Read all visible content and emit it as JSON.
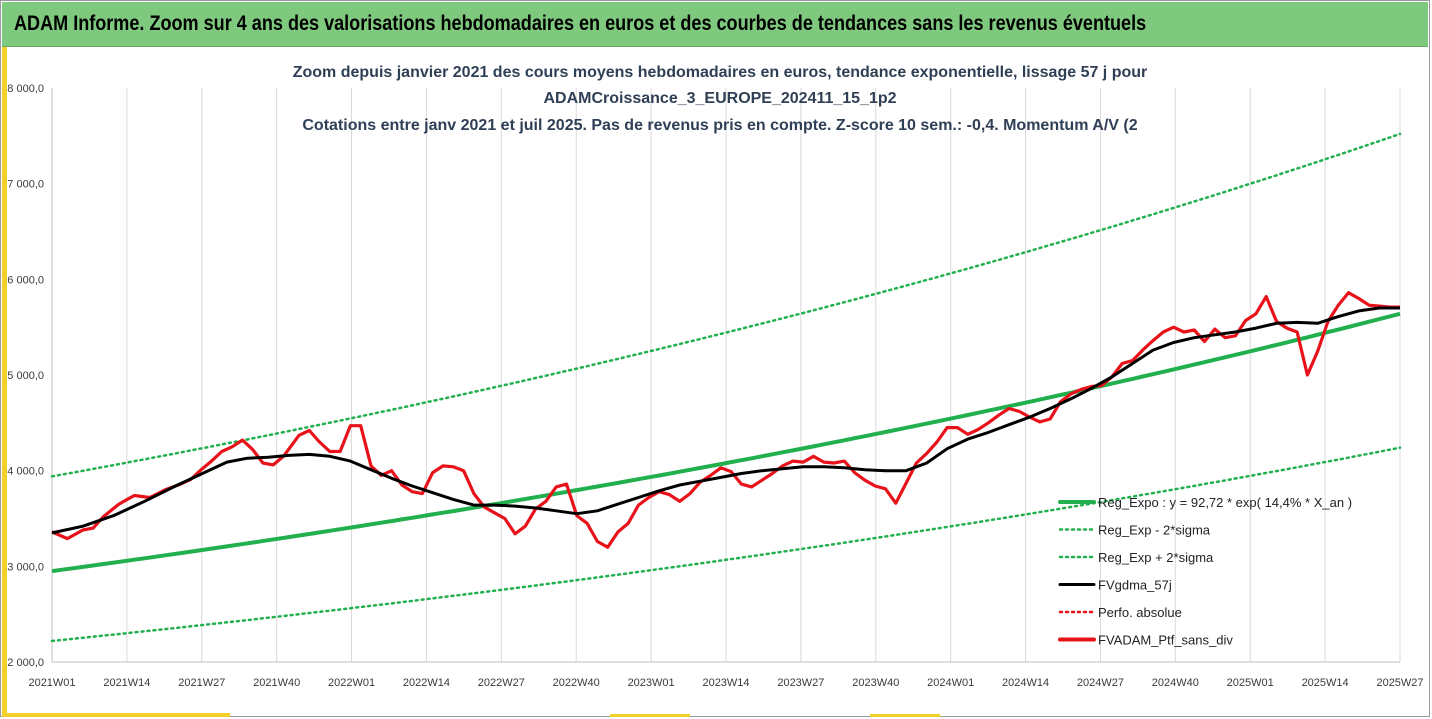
{
  "banner": {
    "title": "ADAM Informe. Zoom sur 4 ans des valorisations hebdomadaires en euros et des courbes de tendances sans les revenus éventuels"
  },
  "colors": {
    "banner_bg": "#7fc97f",
    "accent_yellow": "#f3d12a",
    "title_text": "#2f3f55",
    "reg_expo": "#22b04f",
    "sigma_bands": "#22b04f",
    "fvgdma": "#000000",
    "perfo_absolue": "#e8121a",
    "fvadam": "#e8121a"
  },
  "chart_data": {
    "type": "line",
    "title_lines": [
      "Zoom depuis janvier 2021 des cours moyens hebdomadaires  en euros, tendance exponentielle, lissage 57 j pour",
      "ADAMCroissance_3_EUROPE_202411_15_1p2",
      "Cotations  entre janv 2021 et juil 2025. Pas de revenus pris en compte. Z-score 10 sem.: -0,4. Momentum  A/V (2"
    ],
    "xlabel": "",
    "ylabel": "",
    "ylim": [
      2000,
      8000
    ],
    "yticks": [
      "2 000,0",
      "3 000,0",
      "4 000,0",
      "5 000,0",
      "6 000,0",
      "7 000,0",
      "8 000,0"
    ],
    "ytick_values": [
      2000,
      3000,
      4000,
      5000,
      6000,
      7000,
      8000
    ],
    "xticks": [
      "2021W01",
      "2021W14",
      "2021W27",
      "2021W40",
      "2022W01",
      "2022W14",
      "2022W27",
      "2022W40",
      "2023W01",
      "2023W14",
      "2023W27",
      "2023W40",
      "2024W01",
      "2024W14",
      "2024W27",
      "2024W40",
      "2025W01",
      "2025W14",
      "2025W27"
    ],
    "x_range_weeks": [
      0,
      234
    ],
    "grid": "vertical",
    "legend_position": "right",
    "legend": [
      {
        "label": "Reg_Expo : y = 92,72 * exp( 14,4% *  X_an )",
        "style": "solid-thick",
        "color": "#22b04f"
      },
      {
        "label": "Reg_Exp - 2*sigma",
        "style": "dotted",
        "color": "#22b04f"
      },
      {
        "label": "Reg_Exp + 2*sigma",
        "style": "dotted",
        "color": "#22b04f"
      },
      {
        "label": "FVgdma_57j",
        "style": "solid",
        "color": "#000000"
      },
      {
        "label": "Perfo. absolue",
        "style": "dotted",
        "color": "#e8121a"
      },
      {
        "label": "FVADAM_Ptf_sans_div",
        "style": "solid-thick",
        "color": "#e8121a"
      }
    ],
    "series": [
      {
        "name": "Reg_Expo : y = 92,72 * exp( 14,4% *  X_an )",
        "start": 2950,
        "end": 5640
      },
      {
        "name": "Reg_Exp - 2*sigma",
        "start": 2220,
        "end": 4240
      },
      {
        "name": "Reg_Exp + 2*sigma",
        "start": 3940,
        "end": 7520
      },
      {
        "name": "FVgdma_57j",
        "points": [
          [
            0,
            3350
          ],
          [
            6,
            3420
          ],
          [
            12,
            3530
          ],
          [
            18,
            3680
          ],
          [
            24,
            3840
          ],
          [
            30,
            3990
          ],
          [
            34,
            4090
          ],
          [
            38,
            4130
          ],
          [
            42,
            4140
          ],
          [
            46,
            4160
          ],
          [
            50,
            4170
          ],
          [
            54,
            4150
          ],
          [
            58,
            4100
          ],
          [
            62,
            4010
          ],
          [
            66,
            3920
          ],
          [
            70,
            3840
          ],
          [
            74,
            3770
          ],
          [
            78,
            3700
          ],
          [
            82,
            3640
          ],
          [
            86,
            3640
          ],
          [
            90,
            3630
          ],
          [
            94,
            3610
          ],
          [
            98,
            3580
          ],
          [
            102,
            3550
          ],
          [
            106,
            3580
          ],
          [
            110,
            3650
          ],
          [
            114,
            3720
          ],
          [
            118,
            3790
          ],
          [
            122,
            3850
          ],
          [
            126,
            3890
          ],
          [
            130,
            3930
          ],
          [
            134,
            3970
          ],
          [
            138,
            4000
          ],
          [
            142,
            4020
          ],
          [
            146,
            4040
          ],
          [
            150,
            4040
          ],
          [
            154,
            4030
          ],
          [
            158,
            4010
          ],
          [
            162,
            4000
          ],
          [
            166,
            4000
          ],
          [
            170,
            4080
          ],
          [
            174,
            4230
          ],
          [
            178,
            4330
          ],
          [
            182,
            4400
          ],
          [
            186,
            4480
          ],
          [
            190,
            4560
          ],
          [
            194,
            4650
          ],
          [
            198,
            4750
          ],
          [
            202,
            4860
          ],
          [
            206,
            4980
          ],
          [
            210,
            5120
          ],
          [
            214,
            5260
          ],
          [
            218,
            5340
          ],
          [
            222,
            5390
          ],
          [
            226,
            5420
          ],
          [
            230,
            5450
          ],
          [
            234,
            5490
          ],
          [
            238,
            5540
          ],
          [
            242,
            5550
          ],
          [
            246,
            5540
          ],
          [
            250,
            5610
          ],
          [
            254,
            5670
          ],
          [
            258,
            5700
          ],
          [
            262,
            5700
          ]
        ]
      },
      {
        "name": "Perfo. absolue",
        "points": []
      },
      {
        "name": "FVADAM_Ptf_sans_div",
        "points": [
          [
            0,
            3360
          ],
          [
            3,
            3290
          ],
          [
            6,
            3380
          ],
          [
            8,
            3400
          ],
          [
            10,
            3520
          ],
          [
            13,
            3650
          ],
          [
            16,
            3740
          ],
          [
            19,
            3720
          ],
          [
            22,
            3800
          ],
          [
            25,
            3860
          ],
          [
            27,
            3910
          ],
          [
            29,
            4010
          ],
          [
            31,
            4100
          ],
          [
            33,
            4200
          ],
          [
            35,
            4250
          ],
          [
            37,
            4320
          ],
          [
            39,
            4220
          ],
          [
            41,
            4080
          ],
          [
            43,
            4060
          ],
          [
            45,
            4150
          ],
          [
            48,
            4370
          ],
          [
            50,
            4420
          ],
          [
            52,
            4300
          ],
          [
            54,
            4200
          ],
          [
            56,
            4200
          ],
          [
            58,
            4470
          ],
          [
            60,
            4470
          ],
          [
            62,
            4050
          ],
          [
            64,
            3950
          ],
          [
            66,
            4000
          ],
          [
            68,
            3850
          ],
          [
            70,
            3780
          ],
          [
            72,
            3760
          ],
          [
            74,
            3980
          ],
          [
            76,
            4050
          ],
          [
            78,
            4040
          ],
          [
            80,
            4000
          ],
          [
            82,
            3760
          ],
          [
            84,
            3620
          ],
          [
            86,
            3560
          ],
          [
            88,
            3500
          ],
          [
            90,
            3340
          ],
          [
            92,
            3420
          ],
          [
            94,
            3600
          ],
          [
            96,
            3680
          ],
          [
            98,
            3830
          ],
          [
            100,
            3860
          ],
          [
            102,
            3530
          ],
          [
            104,
            3450
          ],
          [
            106,
            3260
          ],
          [
            108,
            3200
          ],
          [
            110,
            3360
          ],
          [
            112,
            3450
          ],
          [
            114,
            3640
          ],
          [
            116,
            3720
          ],
          [
            118,
            3780
          ],
          [
            120,
            3750
          ],
          [
            122,
            3680
          ],
          [
            124,
            3760
          ],
          [
            126,
            3880
          ],
          [
            128,
            3950
          ],
          [
            130,
            4030
          ],
          [
            132,
            3990
          ],
          [
            134,
            3860
          ],
          [
            136,
            3830
          ],
          [
            138,
            3900
          ],
          [
            140,
            3970
          ],
          [
            142,
            4050
          ],
          [
            144,
            4100
          ],
          [
            146,
            4090
          ],
          [
            148,
            4150
          ],
          [
            150,
            4090
          ],
          [
            152,
            4080
          ],
          [
            154,
            4100
          ],
          [
            156,
            3980
          ],
          [
            158,
            3900
          ],
          [
            160,
            3840
          ],
          [
            162,
            3810
          ],
          [
            164,
            3660
          ],
          [
            166,
            3870
          ],
          [
            168,
            4080
          ],
          [
            170,
            4180
          ],
          [
            172,
            4300
          ],
          [
            174,
            4450
          ],
          [
            176,
            4450
          ],
          [
            178,
            4380
          ],
          [
            180,
            4430
          ],
          [
            182,
            4500
          ],
          [
            184,
            4580
          ],
          [
            186,
            4650
          ],
          [
            188,
            4620
          ],
          [
            190,
            4560
          ],
          [
            192,
            4510
          ],
          [
            194,
            4540
          ],
          [
            196,
            4720
          ],
          [
            198,
            4800
          ],
          [
            200,
            4850
          ],
          [
            202,
            4880
          ],
          [
            204,
            4890
          ],
          [
            206,
            4980
          ],
          [
            208,
            5120
          ],
          [
            210,
            5150
          ],
          [
            212,
            5260
          ],
          [
            214,
            5360
          ],
          [
            216,
            5450
          ],
          [
            218,
            5500
          ],
          [
            220,
            5450
          ],
          [
            222,
            5470
          ],
          [
            224,
            5350
          ],
          [
            226,
            5480
          ],
          [
            228,
            5390
          ],
          [
            230,
            5410
          ],
          [
            232,
            5570
          ],
          [
            234,
            5640
          ],
          [
            236,
            5820
          ],
          [
            238,
            5560
          ],
          [
            240,
            5490
          ],
          [
            242,
            5450
          ],
          [
            244,
            5000
          ],
          [
            246,
            5250
          ],
          [
            248,
            5560
          ],
          [
            250,
            5730
          ],
          [
            252,
            5860
          ],
          [
            254,
            5800
          ],
          [
            256,
            5730
          ],
          [
            258,
            5720
          ],
          [
            260,
            5710
          ],
          [
            262,
            5710
          ]
        ]
      }
    ]
  }
}
